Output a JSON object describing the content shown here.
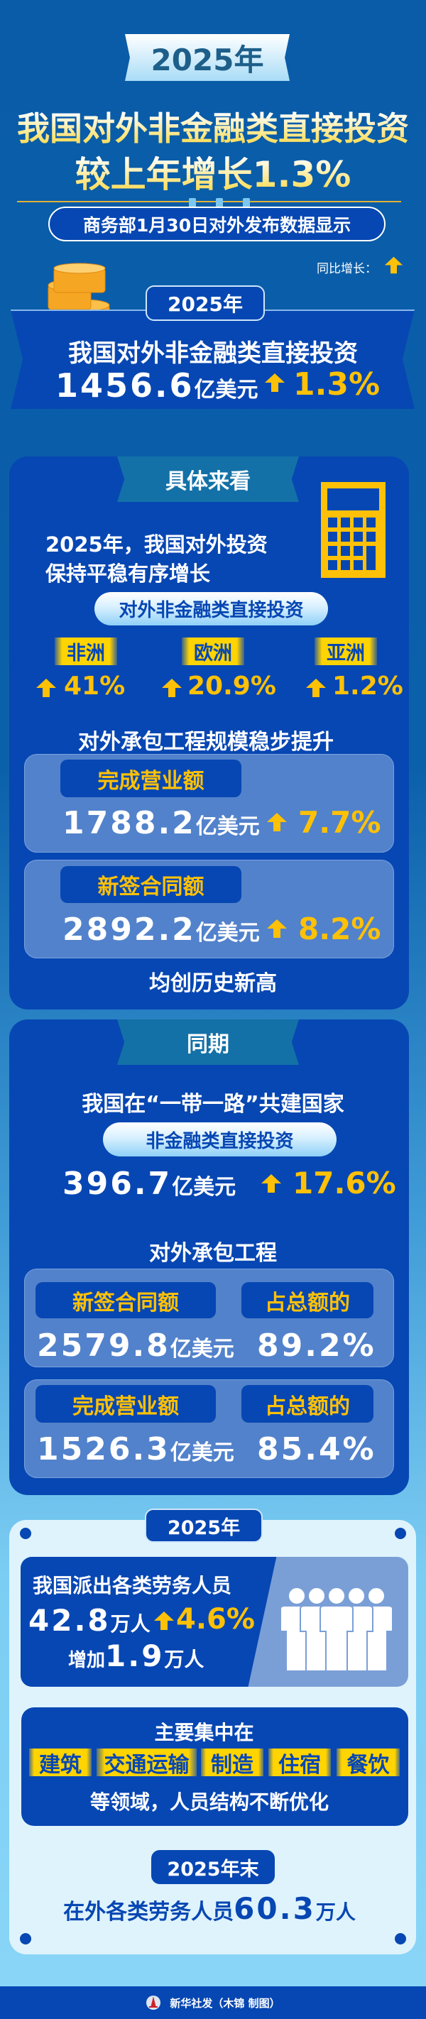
{
  "header": {
    "year_badge": "2025年",
    "title_line1": "我国对外非金融类直接投资",
    "title_line2": "较上年增长1.3%",
    "source_pill": "商务部1月30日对外发布数据显示",
    "legend_label": "同比增长：",
    "legend_icon": "up-arrow-icon"
  },
  "summary": {
    "year": "2025年",
    "label": "我国对外非金融类直接投资",
    "value": "1456.6",
    "unit": "亿美元",
    "growth": "1.3%"
  },
  "details": {
    "tab": "具体来看",
    "intro_line1": "2025年，我国对外投资",
    "intro_line2": "保持平稳有序增长",
    "pill": "对外非金融类直接投资",
    "regions": [
      {
        "name": "非洲",
        "growth": "41%"
      },
      {
        "name": "欧洲",
        "growth": "20.9%"
      },
      {
        "name": "亚洲",
        "growth": "1.2%"
      }
    ],
    "contract_heading": "对外承包工程规模稳步提升",
    "contracts": [
      {
        "label": "完成营业额",
        "value": "1788.2",
        "unit": "亿美元",
        "growth": "7.7%"
      },
      {
        "label": "新签合同额",
        "value": "2892.2",
        "unit": "亿美元",
        "growth": "8.2%"
      }
    ],
    "footer": "均创历史新高"
  },
  "belt_road": {
    "tab": "同期",
    "heading": "我国在“一带一路”共建国家",
    "pill": "非金融类直接投资",
    "value": "396.7",
    "unit": "亿美元",
    "growth": "17.6%",
    "contract_heading": "对外承包工程",
    "share_label": "占总额的",
    "contracts": [
      {
        "label": "新签合同额",
        "value": "2579.8",
        "unit": "亿美元",
        "share": "89.2%"
      },
      {
        "label": "完成营业额",
        "value": "1526.3",
        "unit": "亿美元",
        "share": "85.4%"
      }
    ]
  },
  "labor": {
    "year": "2025年",
    "heading": "我国派出各类劳务人员",
    "value": "42.8",
    "unit": "万人",
    "growth": "4.6%",
    "increase_prefix": "增加",
    "increase_value": "1.9",
    "increase_unit": "万人",
    "focus_heading": "主要集中在",
    "sectors": [
      "建筑",
      "交通运输",
      "制造",
      "住宿",
      "餐饮"
    ],
    "focus_footer": "等领域，人员结构不断优化",
    "yearend_badge": "2025年末",
    "yearend_prefix": "在外各类劳务人员",
    "yearend_value": "60.3",
    "yearend_unit": "万人"
  },
  "credit": "新华社发（木锦 制图）",
  "colors": {
    "accent": "#ffc107",
    "panel": "#0747b3",
    "light_panel": "#dff3fc"
  }
}
